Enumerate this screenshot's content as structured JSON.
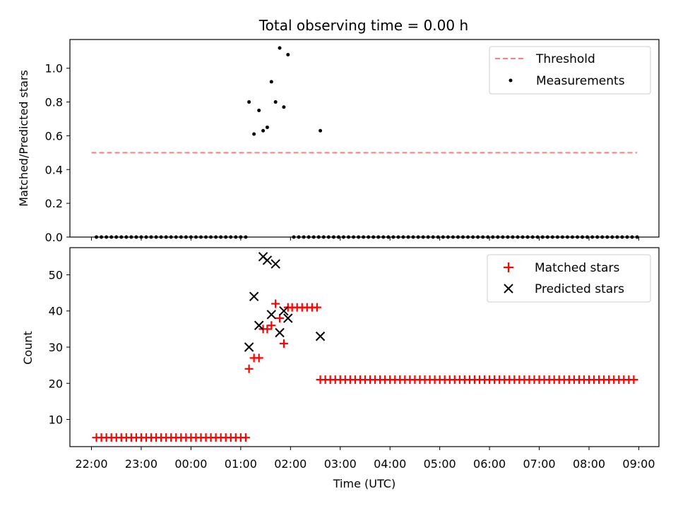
{
  "figure_title": "Total observing time = 0.00 h",
  "xlabel": "Time (UTC)",
  "x_tick_labels": [
    "22:00",
    "23:00",
    "00:00",
    "01:00",
    "02:00",
    "03:00",
    "04:00",
    "05:00",
    "06:00",
    "07:00",
    "08:00",
    "09:00"
  ],
  "colors": {
    "threshold": "#ff7f7f",
    "measurements": "#000000",
    "matched": "#ff0000",
    "predicted": "#000000"
  },
  "chart_data": [
    {
      "type": "scatter",
      "ylabel": "Matched/Predicted stars",
      "ylim": [
        0,
        1.17
      ],
      "y_ticks": [
        0.0,
        0.2,
        0.4,
        0.6,
        0.8,
        1.0
      ],
      "y_tick_labels": [
        "0.0",
        "0.2",
        "0.4",
        "0.6",
        "0.8",
        "1.0"
      ],
      "legend_position": "top-right",
      "threshold": {
        "name": "Threshold",
        "value": 0.5,
        "x_range": [
          "22:00",
          "08:58"
        ]
      },
      "series": [
        {
          "name": "Measurements",
          "marker": "dot",
          "points": [
            [
              "22:06",
              0
            ],
            [
              "22:12",
              0
            ],
            [
              "22:18",
              0
            ],
            [
              "22:24",
              0
            ],
            [
              "22:30",
              0
            ],
            [
              "22:36",
              0
            ],
            [
              "22:42",
              0
            ],
            [
              "22:48",
              0
            ],
            [
              "22:54",
              0
            ],
            [
              "23:00",
              0
            ],
            [
              "23:06",
              0
            ],
            [
              "23:12",
              0
            ],
            [
              "23:18",
              0
            ],
            [
              "23:24",
              0
            ],
            [
              "23:30",
              0
            ],
            [
              "23:36",
              0
            ],
            [
              "23:42",
              0
            ],
            [
              "23:48",
              0
            ],
            [
              "23:54",
              0
            ],
            [
              "00:00",
              0
            ],
            [
              "00:06",
              0
            ],
            [
              "00:12",
              0
            ],
            [
              "00:18",
              0
            ],
            [
              "00:24",
              0
            ],
            [
              "00:30",
              0
            ],
            [
              "00:36",
              0
            ],
            [
              "00:42",
              0
            ],
            [
              "00:48",
              0
            ],
            [
              "00:54",
              0
            ],
            [
              "01:00",
              0
            ],
            [
              "01:06",
              0
            ],
            [
              "01:10",
              0.8
            ],
            [
              "01:16",
              0.61
            ],
            [
              "01:22",
              0.75
            ],
            [
              "01:27",
              0.63
            ],
            [
              "01:32",
              0.65
            ],
            [
              "01:37",
              0.92
            ],
            [
              "01:42",
              0.8
            ],
            [
              "01:47",
              1.12
            ],
            [
              "01:52",
              0.77
            ],
            [
              "01:57",
              1.08
            ],
            [
              "02:04",
              0
            ],
            [
              "02:10",
              0
            ],
            [
              "02:16",
              0
            ],
            [
              "02:22",
              0
            ],
            [
              "02:28",
              0
            ],
            [
              "02:34",
              0
            ],
            [
              "02:36",
              0.63
            ],
            [
              "02:40",
              0
            ],
            [
              "02:46",
              0
            ],
            [
              "02:52",
              0
            ],
            [
              "02:58",
              0
            ],
            [
              "03:04",
              0
            ],
            [
              "03:10",
              0
            ],
            [
              "03:16",
              0
            ],
            [
              "03:22",
              0
            ],
            [
              "03:28",
              0
            ],
            [
              "03:34",
              0
            ],
            [
              "03:40",
              0
            ],
            [
              "03:46",
              0
            ],
            [
              "03:52",
              0
            ],
            [
              "03:58",
              0
            ],
            [
              "04:04",
              0
            ],
            [
              "04:10",
              0
            ],
            [
              "04:16",
              0
            ],
            [
              "04:22",
              0
            ],
            [
              "04:28",
              0
            ],
            [
              "04:34",
              0
            ],
            [
              "04:40",
              0
            ],
            [
              "04:46",
              0
            ],
            [
              "04:52",
              0
            ],
            [
              "04:58",
              0
            ],
            [
              "05:04",
              0
            ],
            [
              "05:10",
              0
            ],
            [
              "05:16",
              0
            ],
            [
              "05:22",
              0
            ],
            [
              "05:28",
              0
            ],
            [
              "05:34",
              0
            ],
            [
              "05:40",
              0
            ],
            [
              "05:46",
              0
            ],
            [
              "05:52",
              0
            ],
            [
              "05:58",
              0
            ],
            [
              "06:04",
              0
            ],
            [
              "06:10",
              0
            ],
            [
              "06:16",
              0
            ],
            [
              "06:22",
              0
            ],
            [
              "06:28",
              0
            ],
            [
              "06:34",
              0
            ],
            [
              "06:40",
              0
            ],
            [
              "06:46",
              0
            ],
            [
              "06:52",
              0
            ],
            [
              "06:58",
              0
            ],
            [
              "07:04",
              0
            ],
            [
              "07:10",
              0
            ],
            [
              "07:16",
              0
            ],
            [
              "07:22",
              0
            ],
            [
              "07:28",
              0
            ],
            [
              "07:34",
              0
            ],
            [
              "07:40",
              0
            ],
            [
              "07:46",
              0
            ],
            [
              "07:52",
              0
            ],
            [
              "07:58",
              0
            ],
            [
              "08:04",
              0
            ],
            [
              "08:10",
              0
            ],
            [
              "08:16",
              0
            ],
            [
              "08:22",
              0
            ],
            [
              "08:28",
              0
            ],
            [
              "08:34",
              0
            ],
            [
              "08:40",
              0
            ],
            [
              "08:46",
              0
            ],
            [
              "08:52",
              0
            ],
            [
              "08:58",
              0
            ]
          ]
        }
      ]
    },
    {
      "type": "scatter",
      "ylabel": "Count",
      "ylim": [
        2.5,
        57.5
      ],
      "y_ticks": [
        10,
        20,
        30,
        40,
        50
      ],
      "y_tick_labels": [
        "10",
        "20",
        "30",
        "40",
        "50"
      ],
      "legend_position": "top-right",
      "series": [
        {
          "name": "Matched stars",
          "marker": "plus",
          "points": [
            [
              "22:06",
              5
            ],
            [
              "22:12",
              5
            ],
            [
              "22:18",
              5
            ],
            [
              "22:24",
              5
            ],
            [
              "22:30",
              5
            ],
            [
              "22:36",
              5
            ],
            [
              "22:42",
              5
            ],
            [
              "22:48",
              5
            ],
            [
              "22:54",
              5
            ],
            [
              "23:00",
              5
            ],
            [
              "23:06",
              5
            ],
            [
              "23:12",
              5
            ],
            [
              "23:18",
              5
            ],
            [
              "23:24",
              5
            ],
            [
              "23:30",
              5
            ],
            [
              "23:36",
              5
            ],
            [
              "23:42",
              5
            ],
            [
              "23:48",
              5
            ],
            [
              "23:54",
              5
            ],
            [
              "00:00",
              5
            ],
            [
              "00:06",
              5
            ],
            [
              "00:12",
              5
            ],
            [
              "00:18",
              5
            ],
            [
              "00:24",
              5
            ],
            [
              "00:30",
              5
            ],
            [
              "00:36",
              5
            ],
            [
              "00:42",
              5
            ],
            [
              "00:48",
              5
            ],
            [
              "00:54",
              5
            ],
            [
              "01:00",
              5
            ],
            [
              "01:06",
              5
            ],
            [
              "01:10",
              24
            ],
            [
              "01:16",
              27
            ],
            [
              "01:22",
              27
            ],
            [
              "01:27",
              35
            ],
            [
              "01:32",
              35
            ],
            [
              "01:37",
              36
            ],
            [
              "01:42",
              42
            ],
            [
              "01:47",
              38
            ],
            [
              "01:52",
              31
            ],
            [
              "01:57",
              41
            ],
            [
              "02:02",
              41
            ],
            [
              "02:08",
              41
            ],
            [
              "02:14",
              41
            ],
            [
              "02:20",
              41
            ],
            [
              "02:26",
              41
            ],
            [
              "02:32",
              41
            ],
            [
              "02:36",
              21
            ],
            [
              "02:42",
              21
            ],
            [
              "02:48",
              21
            ],
            [
              "02:54",
              21
            ],
            [
              "03:00",
              21
            ],
            [
              "03:06",
              21
            ],
            [
              "03:12",
              21
            ],
            [
              "03:18",
              21
            ],
            [
              "03:24",
              21
            ],
            [
              "03:30",
              21
            ],
            [
              "03:36",
              21
            ],
            [
              "03:42",
              21
            ],
            [
              "03:48",
              21
            ],
            [
              "03:54",
              21
            ],
            [
              "04:00",
              21
            ],
            [
              "04:06",
              21
            ],
            [
              "04:12",
              21
            ],
            [
              "04:18",
              21
            ],
            [
              "04:24",
              21
            ],
            [
              "04:30",
              21
            ],
            [
              "04:36",
              21
            ],
            [
              "04:42",
              21
            ],
            [
              "04:48",
              21
            ],
            [
              "04:54",
              21
            ],
            [
              "05:00",
              21
            ],
            [
              "05:06",
              21
            ],
            [
              "05:12",
              21
            ],
            [
              "05:18",
              21
            ],
            [
              "05:24",
              21
            ],
            [
              "05:30",
              21
            ],
            [
              "05:36",
              21
            ],
            [
              "05:42",
              21
            ],
            [
              "05:48",
              21
            ],
            [
              "05:54",
              21
            ],
            [
              "06:00",
              21
            ],
            [
              "06:06",
              21
            ],
            [
              "06:12",
              21
            ],
            [
              "06:18",
              21
            ],
            [
              "06:24",
              21
            ],
            [
              "06:30",
              21
            ],
            [
              "06:36",
              21
            ],
            [
              "06:42",
              21
            ],
            [
              "06:48",
              21
            ],
            [
              "06:54",
              21
            ],
            [
              "07:00",
              21
            ],
            [
              "07:06",
              21
            ],
            [
              "07:12",
              21
            ],
            [
              "07:18",
              21
            ],
            [
              "07:24",
              21
            ],
            [
              "07:30",
              21
            ],
            [
              "07:36",
              21
            ],
            [
              "07:42",
              21
            ],
            [
              "07:48",
              21
            ],
            [
              "07:54",
              21
            ],
            [
              "08:00",
              21
            ],
            [
              "08:06",
              21
            ],
            [
              "08:12",
              21
            ],
            [
              "08:18",
              21
            ],
            [
              "08:24",
              21
            ],
            [
              "08:30",
              21
            ],
            [
              "08:36",
              21
            ],
            [
              "08:42",
              21
            ],
            [
              "08:48",
              21
            ],
            [
              "08:54",
              21
            ]
          ]
        },
        {
          "name": "Predicted stars",
          "marker": "x",
          "points": [
            [
              "01:10",
              30
            ],
            [
              "01:16",
              44
            ],
            [
              "01:22",
              36
            ],
            [
              "01:27",
              55
            ],
            [
              "01:32",
              54
            ],
            [
              "01:37",
              39
            ],
            [
              "01:42",
              53
            ],
            [
              "01:47",
              34
            ],
            [
              "01:52",
              40
            ],
            [
              "01:57",
              38
            ],
            [
              "02:36",
              33
            ]
          ]
        }
      ]
    }
  ]
}
